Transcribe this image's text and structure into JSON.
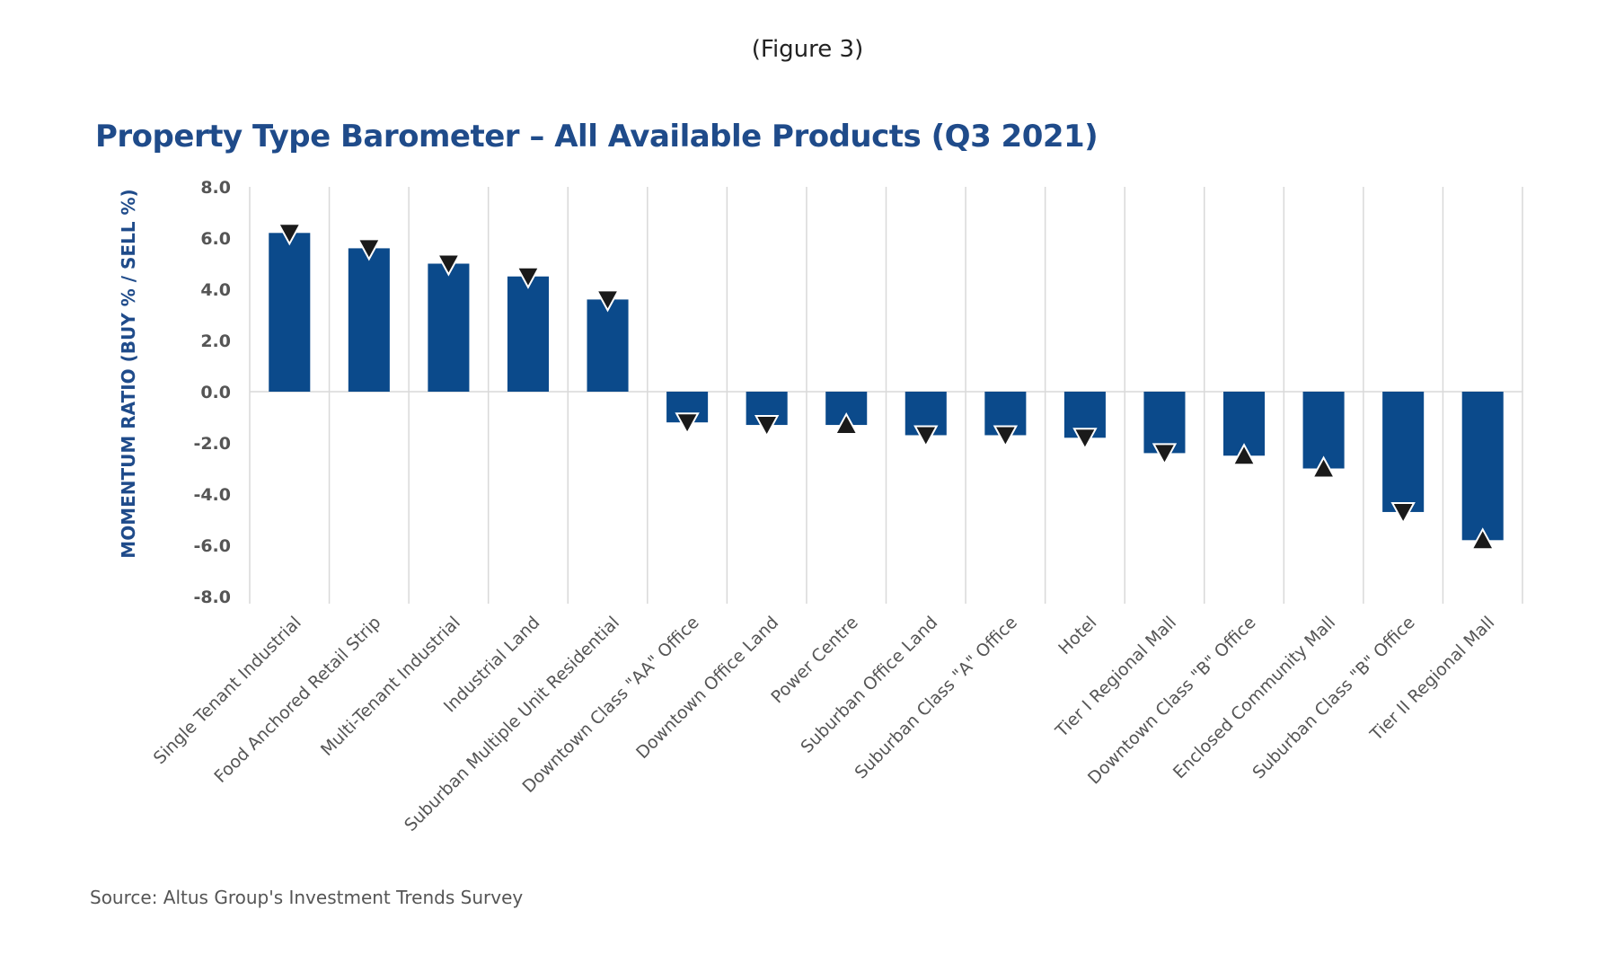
{
  "figure_label": "(Figure 3)",
  "source": "Source: Altus Group's Investment Trends Survey",
  "colors": {
    "bar": "#0b4a8b",
    "title": "#1f4b8a",
    "grid": "#d9d9d9",
    "marker": "#1a1a1a"
  },
  "chart_data": {
    "type": "bar",
    "title": "Property Type Barometer – All Available Products (Q3 2021)",
    "xlabel": "",
    "ylabel": "MOMENTUM RATIO (BUY % / SELL %)",
    "ylim": [
      -8,
      8
    ],
    "yticks": [
      "8.0",
      "6.0",
      "4.0",
      "2.0",
      "0.0",
      "-2.0",
      "-4.0",
      "-6.0",
      "-8.0"
    ],
    "grid": true,
    "categories": [
      "Single Tenant Industrial",
      "Food Anchored Retail Strip",
      "Multi-Tenant Industrial",
      "Industrial Land",
      "Suburban Multiple Unit Residential",
      "Downtown Class \"AA\" Office",
      "Downtown Office Land",
      "Power Centre",
      "Suburban Office Land",
      "Suburban Class \"A\" Office",
      "Hotel",
      "Tier I Regional Mall",
      "Downtown Class \"B\" Office",
      "Enclosed Community Mall",
      "Suburban Class \"B\" Office",
      "Tier II Regional Mall"
    ],
    "values": [
      6.2,
      5.6,
      5.0,
      4.5,
      3.6,
      -1.2,
      -1.3,
      -1.3,
      -1.7,
      -1.7,
      -1.8,
      -2.4,
      -2.5,
      -3.0,
      -4.7,
      -5.8
    ],
    "trend": [
      "down",
      "down",
      "down",
      "down",
      "down",
      "down",
      "down",
      "up",
      "down",
      "down",
      "down",
      "down",
      "up",
      "up",
      "down",
      "up"
    ]
  }
}
